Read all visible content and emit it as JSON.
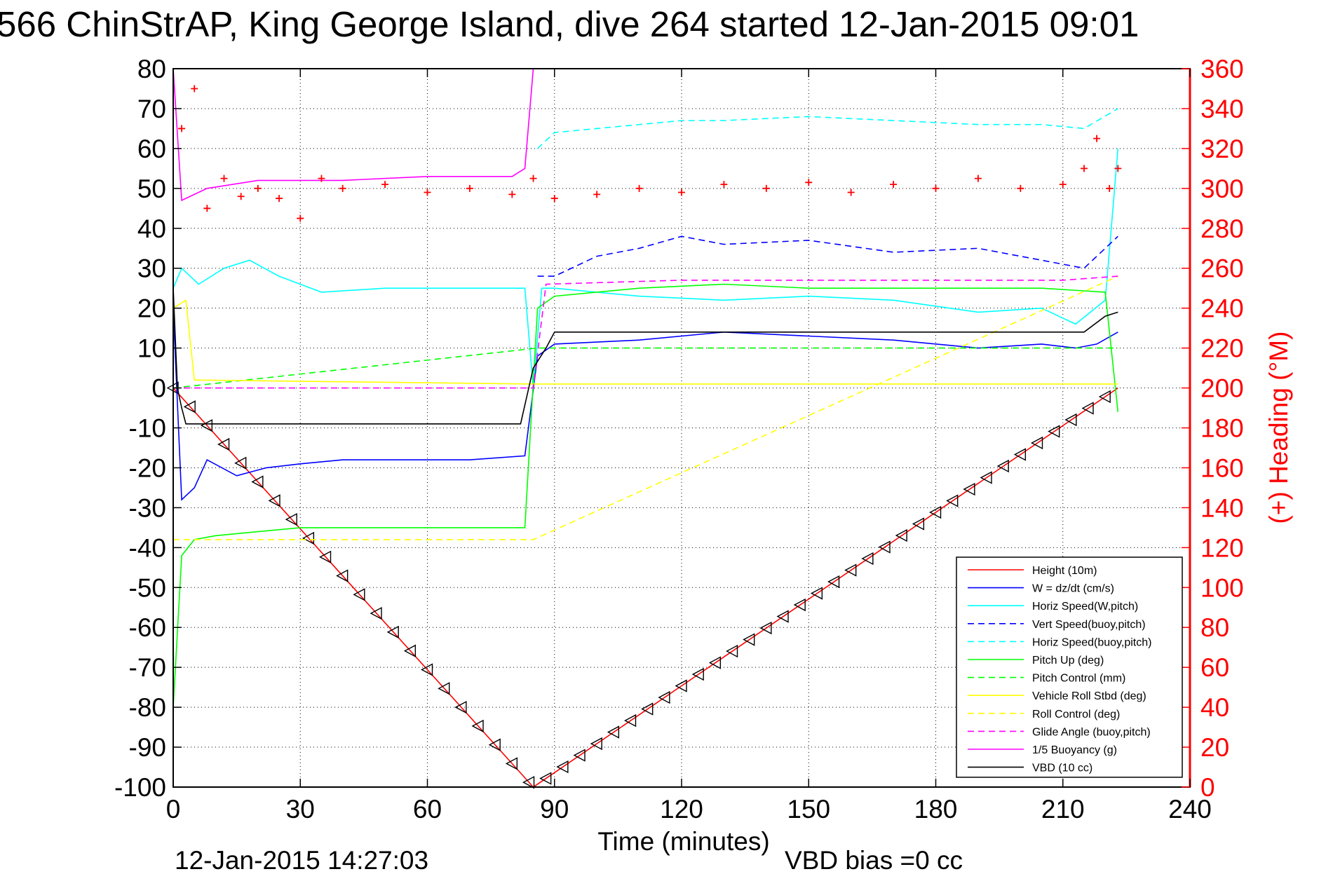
{
  "chart_data": {
    "type": "line",
    "title": "566 ChinStrAP, King George Island, dive 264 started 12-Jan-2015 09:01",
    "xlabel": "Time (minutes)",
    "ylabel": "",
    "ylabel_right": "(+) Heading (°M)",
    "xlim": [
      0,
      240
    ],
    "ylim": [
      -100,
      80
    ],
    "ylim_right": [
      0,
      360
    ],
    "x_ticks": [
      0,
      30,
      60,
      90,
      120,
      150,
      180,
      210,
      240
    ],
    "y_ticks": [
      80,
      70,
      60,
      50,
      40,
      30,
      20,
      10,
      0,
      -10,
      -20,
      -30,
      -40,
      -50,
      -60,
      -70,
      -80,
      -90,
      -100
    ],
    "y_ticks_right": [
      360,
      340,
      320,
      300,
      280,
      260,
      240,
      220,
      200,
      180,
      160,
      140,
      120,
      100,
      80,
      60,
      40,
      20,
      0
    ],
    "grid": true,
    "legend_position": "bottom-right",
    "timestamp": "12-Jan-2015 14:27:03",
    "vbd_bias": "VBD bias =0 cc",
    "series": [
      {
        "name": "Height (10m)",
        "color": "#ff0000",
        "dash": "solid",
        "marker": "triangle",
        "x": [
          0,
          85,
          223
        ],
        "y": [
          0,
          -100,
          0
        ]
      },
      {
        "name": "W = dz/dt (cm/s)",
        "color": "#0000ff",
        "dash": "solid",
        "x": [
          0,
          2,
          5,
          8,
          15,
          22,
          30,
          40,
          55,
          70,
          83,
          86,
          90,
          110,
          130,
          150,
          170,
          190,
          205,
          213,
          218,
          223
        ],
        "y": [
          20,
          -28,
          -25,
          -18,
          -22,
          -20,
          -19,
          -18,
          -18,
          -18,
          -17,
          8,
          11,
          12,
          14,
          13,
          12,
          10,
          11,
          10,
          11,
          14
        ]
      },
      {
        "name": "Horiz Speed(W,pitch)",
        "color": "#00ffff",
        "dash": "solid",
        "x": [
          0,
          2,
          6,
          12,
          18,
          25,
          35,
          50,
          70,
          83,
          85,
          87,
          90,
          110,
          130,
          150,
          170,
          190,
          205,
          213,
          220,
          223
        ],
        "y": [
          25,
          30,
          26,
          30,
          32,
          28,
          24,
          25,
          25,
          25,
          0,
          25,
          25,
          23,
          22,
          23,
          22,
          19,
          20,
          16,
          22,
          60
        ]
      },
      {
        "name": "Vert Speed(buoy,pitch)",
        "color": "#0000ff",
        "dash": "dashed",
        "x": [
          86,
          90,
          100,
          110,
          120,
          130,
          150,
          170,
          190,
          205,
          215,
          223
        ],
        "y": [
          28,
          28,
          33,
          35,
          38,
          36,
          37,
          34,
          35,
          32,
          30,
          38
        ]
      },
      {
        "name": "Horiz Speed(buoy,pitch)",
        "color": "#00ffff",
        "dash": "dashed",
        "x": [
          86,
          90,
          100,
          110,
          120,
          130,
          150,
          170,
          190,
          205,
          215,
          223
        ],
        "y": [
          60,
          64,
          65,
          66,
          67,
          67,
          68,
          67,
          66,
          66,
          65,
          70
        ]
      },
      {
        "name": "Pitch Up (deg)",
        "color": "#00ff00",
        "dash": "solid",
        "x": [
          0,
          2,
          5,
          10,
          20,
          30,
          50,
          70,
          83,
          86,
          90,
          110,
          130,
          150,
          170,
          190,
          205,
          220,
          223
        ],
        "y": [
          -80,
          -42,
          -38,
          -37,
          -36,
          -35,
          -35,
          -35,
          -35,
          20,
          23,
          25,
          26,
          25,
          25,
          25,
          25,
          24,
          -6
        ]
      },
      {
        "name": "Pitch Control (mm)",
        "color": "#00ff00",
        "dash": "dashed",
        "x": [
          0,
          86,
          90,
          120,
          150,
          180,
          210,
          223
        ],
        "y": [
          0,
          10,
          10,
          10,
          10,
          10,
          10,
          10
        ]
      },
      {
        "name": "Vehicle Roll Stbd (deg)",
        "color": "#ffff00",
        "dash": "solid",
        "x": [
          0,
          3,
          5,
          85,
          88,
          223
        ],
        "y": [
          20,
          22,
          2,
          1,
          1,
          1
        ]
      },
      {
        "name": "Roll Control (deg)",
        "color": "#ffff00",
        "dash": "dashed",
        "x": [
          0,
          85,
          223
        ],
        "y": [
          -38,
          -38,
          28
        ]
      },
      {
        "name": "Glide Angle (buoy,pitch)",
        "color": "#ff00ff",
        "dash": "dashed",
        "x": [
          0,
          85,
          88,
          120,
          150,
          180,
          210,
          223
        ],
        "y": [
          0,
          0,
          26,
          27,
          27,
          27,
          27,
          28
        ]
      },
      {
        "name": "1/5 Buoyancy (g)",
        "color": "#ff00ff",
        "dash": "solid",
        "x": [
          0,
          2,
          8,
          20,
          40,
          60,
          80,
          83,
          85
        ],
        "y": [
          80,
          47,
          50,
          52,
          52,
          53,
          53,
          55,
          80
        ]
      },
      {
        "name": "VBD (10 cc)",
        "color": "#000000",
        "dash": "solid",
        "x": [
          0,
          1,
          2,
          3,
          82,
          85,
          88,
          90,
          215,
          220,
          223
        ],
        "y": [
          25,
          0,
          -5,
          -9,
          -9,
          5,
          10,
          14,
          14,
          18,
          19
        ]
      },
      {
        "name": "Heading",
        "color": "#ff0000",
        "dash": "none",
        "marker": "plus",
        "axis": "right",
        "x": [
          2,
          5,
          8,
          12,
          16,
          20,
          25,
          30,
          35,
          40,
          50,
          60,
          70,
          80,
          85,
          90,
          100,
          110,
          120,
          130,
          140,
          150,
          160,
          170,
          180,
          190,
          200,
          210,
          215,
          218,
          221,
          223
        ],
        "y": [
          330,
          350,
          290,
          305,
          296,
          300,
          295,
          285,
          305,
          300,
          302,
          298,
          300,
          297,
          305,
          295,
          297,
          300,
          298,
          302,
          300,
          303,
          298,
          302,
          300,
          305,
          300,
          302,
          310,
          325,
          300,
          310
        ]
      }
    ]
  }
}
